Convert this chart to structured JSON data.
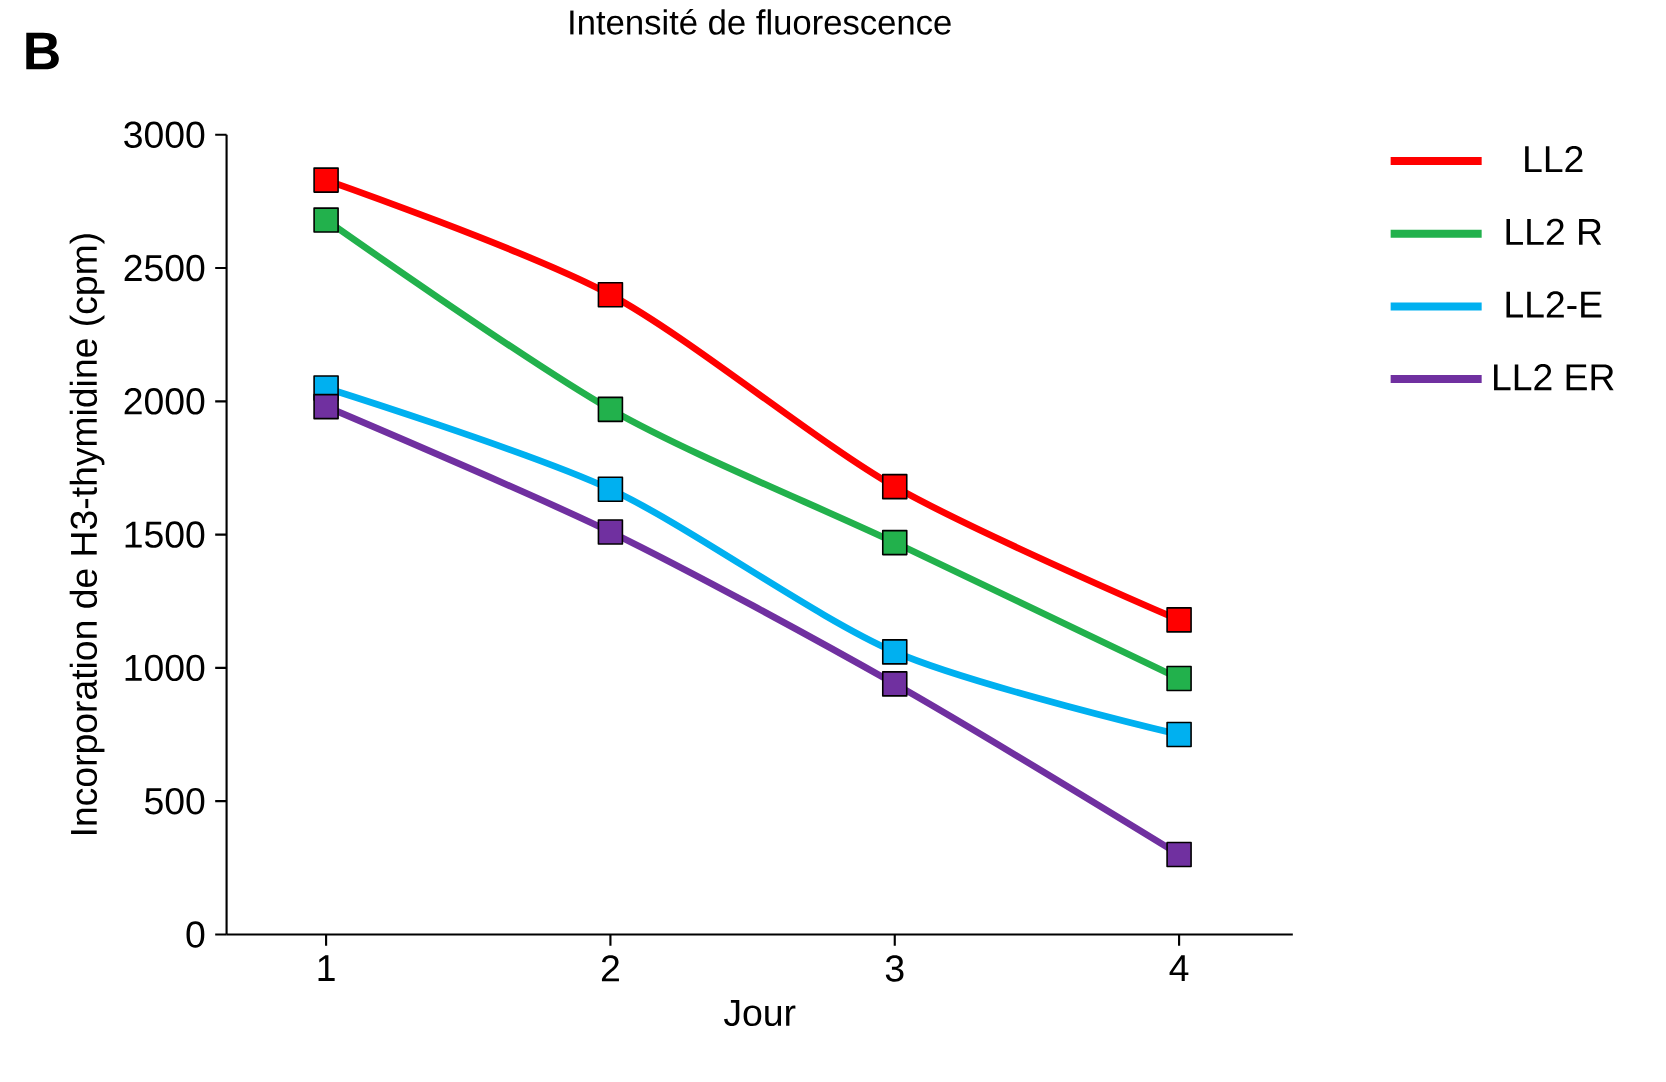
{
  "chart_data": {
    "type": "line",
    "title": "Intensité de fluorescence",
    "annotations": [
      "B"
    ],
    "xlabel": "Jour",
    "ylabel": "Incorporation  de H3-thymidine  (cpm)",
    "categories": [
      "1",
      "2",
      "3",
      "4"
    ],
    "series": [
      {
        "name": "LL2",
        "color": "#ff0000",
        "values": [
          2830,
          2400,
          1680,
          1180
        ]
      },
      {
        "name": "LL2 R",
        "color": "#22b14c",
        "values": [
          2680,
          1970,
          1470,
          960
        ]
      },
      {
        "name": "LL2-E",
        "color": "#00b0f0",
        "values": [
          2050,
          1670,
          1060,
          750
        ]
      },
      {
        "name": "LL2 ER",
        "color": "#7030a0",
        "values": [
          1980,
          1510,
          940,
          300
        ]
      }
    ],
    "ylim": [
      0,
      3000
    ],
    "yticks": [
      0,
      500,
      1000,
      1500,
      2000,
      2500,
      3000
    ],
    "grid": false,
    "legend": "right",
    "marker": "square",
    "line_style": "solid"
  }
}
